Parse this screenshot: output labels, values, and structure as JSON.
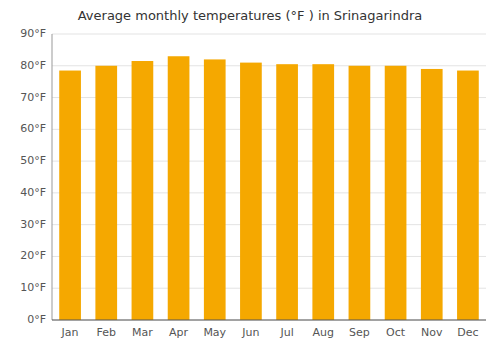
{
  "chart_data": {
    "type": "bar",
    "title": "Average monthly temperatures (°F ) in Srinagarindra",
    "categories": [
      "Jan",
      "Feb",
      "Mar",
      "Apr",
      "May",
      "Jun",
      "Jul",
      "Aug",
      "Sep",
      "Oct",
      "Nov",
      "Dec"
    ],
    "values": [
      78.5,
      80.0,
      81.5,
      83.0,
      82.0,
      81.0,
      80.5,
      80.5,
      80.0,
      80.0,
      79.0,
      78.5
    ],
    "color": "#F5A800",
    "ylim": [
      0,
      90
    ],
    "yticks": [
      {
        "value": 0,
        "label": "0°F"
      },
      {
        "value": 10,
        "label": "10°F"
      },
      {
        "value": 20,
        "label": "20°F"
      },
      {
        "value": 30,
        "label": "30°F"
      },
      {
        "value": 40,
        "label": "40°F"
      },
      {
        "value": 50,
        "label": "50°F"
      },
      {
        "value": 60,
        "label": "60°F"
      },
      {
        "value": 70,
        "label": "70°F"
      },
      {
        "value": 80,
        "label": "80°F"
      },
      {
        "value": 90,
        "label": "90°F"
      }
    ],
    "grid": true
  }
}
